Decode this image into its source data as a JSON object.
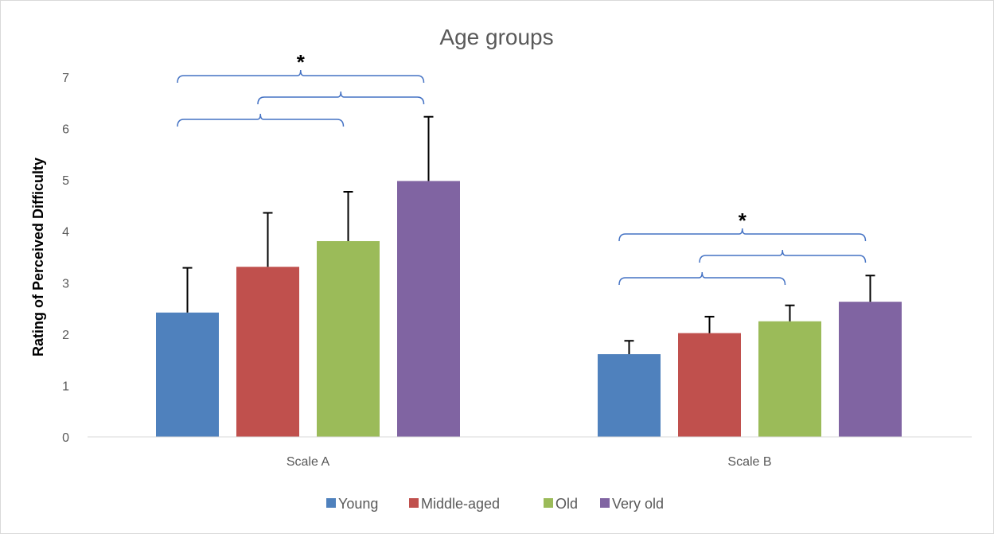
{
  "chart_data": {
    "type": "bar",
    "title": "Age groups",
    "ylabel": "Rating of Perceived Difficulty",
    "xlabel": "",
    "ylim": [
      0,
      7
    ],
    "yticks": [
      0,
      1,
      2,
      3,
      4,
      5,
      6,
      7
    ],
    "categories": [
      "Scale A",
      "Scale B"
    ],
    "series": [
      {
        "name": "Young",
        "color": "#4f81bd",
        "values": [
          2.42,
          1.61
        ],
        "errors": [
          0.87,
          0.26
        ]
      },
      {
        "name": "Middle-aged",
        "color": "#c0504d",
        "values": [
          3.31,
          2.02
        ],
        "errors": [
          1.05,
          0.32
        ]
      },
      {
        "name": "Old",
        "color": "#9bbb59",
        "values": [
          3.81,
          2.25
        ],
        "errors": [
          0.96,
          0.31
        ]
      },
      {
        "name": "Very old",
        "color": "#8064a2",
        "values": [
          4.98,
          2.63
        ],
        "errors": [
          1.25,
          0.51
        ]
      }
    ],
    "significance": [
      {
        "category": "Scale A",
        "from": "Young",
        "to": "Very old",
        "label": "*"
      },
      {
        "category": "Scale A",
        "from": "Middle-aged",
        "to": "Very old",
        "label": ""
      },
      {
        "category": "Scale A",
        "from": "Young",
        "to": "Old",
        "label": ""
      },
      {
        "category": "Scale B",
        "from": "Young",
        "to": "Very old",
        "label": "*"
      },
      {
        "category": "Scale B",
        "from": "Middle-aged",
        "to": "Very old",
        "label": ""
      },
      {
        "category": "Scale B",
        "from": "Young",
        "to": "Old",
        "label": ""
      }
    ],
    "bracket_color": "#4472c4",
    "grid": false,
    "legend_position": "bottom"
  }
}
